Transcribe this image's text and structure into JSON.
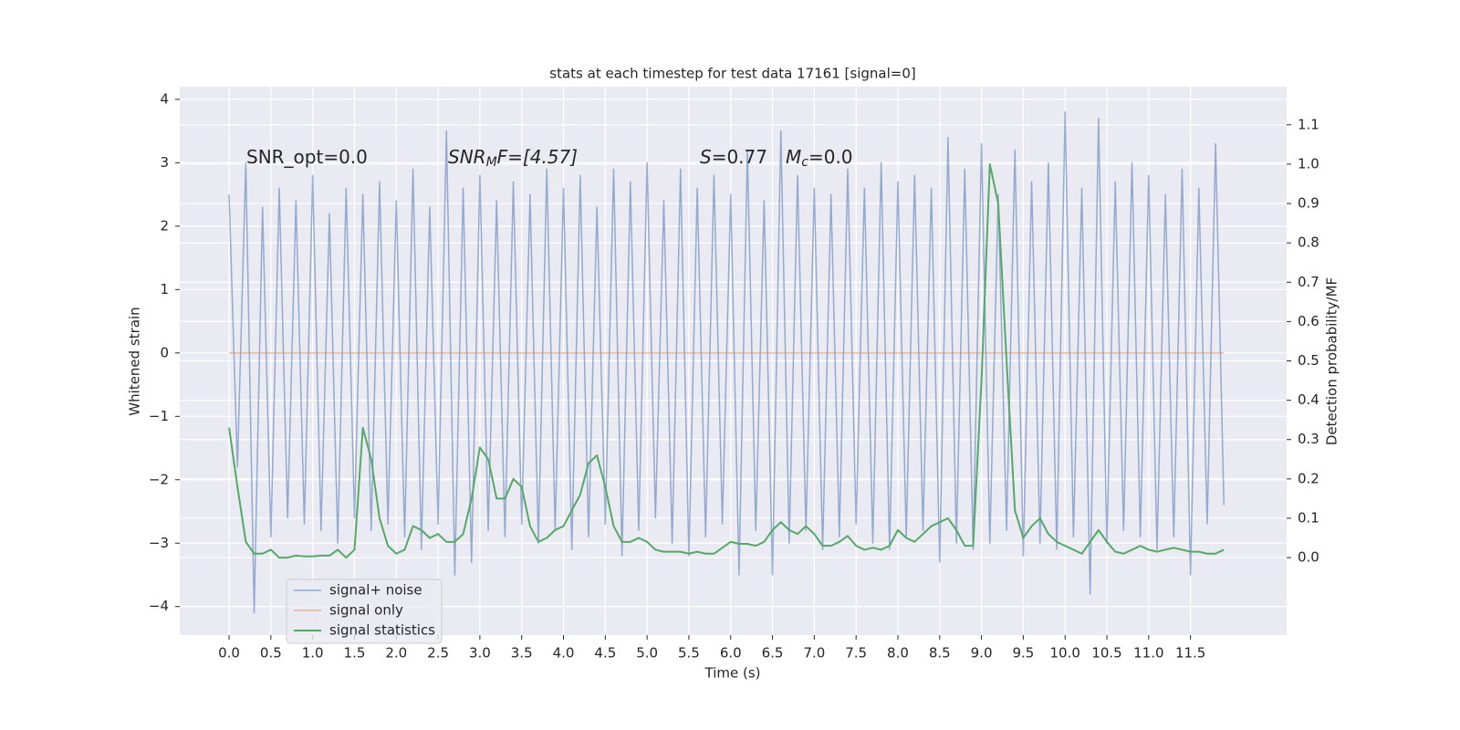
{
  "chart_data": {
    "type": "line",
    "title": "stats at each timestep for test data 17161 [signal=0]",
    "xlabel": "Time (s)",
    "ylabel": "Whitened strain",
    "y2label": "Detection probability/MF",
    "annotations": [
      {
        "parts": [
          "SNR_opt=0.0"
        ]
      },
      {
        "parts": [
          "SNR",
          "M",
          "F=[4.57]"
        ]
      },
      {
        "parts": [
          "S",
          "=0.77",
          "M",
          "c",
          "=0.0"
        ]
      }
    ],
    "x": [
      0,
      0.1,
      0.2,
      0.3,
      0.4,
      0.5,
      0.6,
      0.7,
      0.8,
      0.9,
      1,
      1.1,
      1.2,
      1.3,
      1.4,
      1.5,
      1.6,
      1.7,
      1.8,
      1.9,
      2,
      2.1,
      2.2,
      2.3,
      2.4,
      2.5,
      2.6,
      2.7,
      2.8,
      2.9,
      3,
      3.1,
      3.2,
      3.3,
      3.4,
      3.5,
      3.6,
      3.7,
      3.8,
      3.9,
      4,
      4.1,
      4.2,
      4.3,
      4.4,
      4.5,
      4.6,
      4.7,
      4.8,
      4.9,
      5,
      5.1,
      5.2,
      5.3,
      5.4,
      5.5,
      5.6,
      5.7,
      5.8,
      5.9,
      6,
      6.1,
      6.2,
      6.3,
      6.4,
      6.5,
      6.6,
      6.7,
      6.8,
      6.9,
      7,
      7.1,
      7.2,
      7.3,
      7.4,
      7.5,
      7.6,
      7.7,
      7.8,
      7.9,
      8,
      8.1,
      8.2,
      8.3,
      8.4,
      8.5,
      8.6,
      8.7,
      8.8,
      8.9,
      9,
      9.1,
      9.2,
      9.3,
      9.4,
      9.5,
      9.6,
      9.7,
      9.8,
      9.9,
      10,
      10.1,
      10.2,
      10.3,
      10.4,
      10.5,
      10.6,
      10.7,
      10.8,
      10.9,
      11,
      11.1,
      11.2,
      11.3,
      11.4,
      11.5,
      11.6,
      11.7,
      11.8,
      11.9
    ],
    "series": [
      {
        "name": "signal+ noise",
        "color": "#4c72b0",
        "axis": "y",
        "values": [
          2.5,
          -1.8,
          3.0,
          -4.1,
          2.3,
          -2.9,
          2.6,
          -2.6,
          2.4,
          -2.7,
          2.8,
          -2.8,
          2.2,
          -3.0,
          2.6,
          -2.6,
          2.5,
          -2.8,
          2.7,
          -2.7,
          2.4,
          -2.9,
          2.9,
          -3.1,
          2.3,
          -2.7,
          3.5,
          -3.5,
          2.6,
          -3.3,
          2.8,
          -2.8,
          2.4,
          -2.9,
          2.7,
          -2.7,
          2.5,
          -3.0,
          2.9,
          -2.8,
          2.6,
          -3.1,
          2.8,
          -2.9,
          2.3,
          -2.7,
          2.9,
          -3.2,
          2.7,
          -2.8,
          3.0,
          -2.6,
          2.4,
          -3.0,
          2.9,
          -3.2,
          2.6,
          -2.9,
          2.8,
          -2.7,
          2.5,
          -3.5,
          3.2,
          -2.8,
          2.4,
          -3.5,
          3.5,
          -3.0,
          2.8,
          -2.8,
          2.6,
          -3.1,
          2.5,
          -2.9,
          2.9,
          -2.7,
          2.6,
          -3.0,
          3.0,
          -3.1,
          2.7,
          -2.9,
          2.8,
          -2.8,
          2.6,
          -3.3,
          3.4,
          -3.0,
          2.9,
          -3.1,
          3.3,
          -3.0,
          2.5,
          -2.8,
          3.2,
          -3.2,
          2.7,
          -3.0,
          3.0,
          -3.1,
          3.8,
          -2.9,
          2.6,
          -3.8,
          3.7,
          -3.0,
          2.7,
          -2.8,
          3.0,
          -2.9,
          2.8,
          -3.1,
          2.5,
          -2.9,
          2.9,
          -3.5,
          2.6,
          -2.7,
          3.3,
          -2.4
        ]
      },
      {
        "name": "signal only",
        "color": "#dd8452",
        "axis": "y",
        "values": [
          0,
          0,
          0,
          0,
          0,
          0,
          0,
          0,
          0,
          0,
          0,
          0,
          0,
          0,
          0,
          0,
          0,
          0,
          0,
          0,
          0,
          0,
          0,
          0,
          0,
          0,
          0,
          0,
          0,
          0,
          0,
          0,
          0,
          0,
          0,
          0,
          0,
          0,
          0,
          0,
          0,
          0,
          0,
          0,
          0,
          0,
          0,
          0,
          0,
          0,
          0,
          0,
          0,
          0,
          0,
          0,
          0,
          0,
          0,
          0,
          0,
          0,
          0,
          0,
          0,
          0,
          0,
          0,
          0,
          0,
          0,
          0,
          0,
          0,
          0,
          0,
          0,
          0,
          0,
          0,
          0,
          0,
          0,
          0,
          0,
          0,
          0,
          0,
          0,
          0,
          0,
          0,
          0,
          0,
          0,
          0,
          0,
          0,
          0,
          0,
          0,
          0,
          0,
          0,
          0,
          0,
          0,
          0,
          0,
          0,
          0,
          0,
          0,
          0,
          0,
          0,
          0,
          0,
          0,
          0
        ]
      },
      {
        "name": "signal statistics",
        "color": "#55a868",
        "axis": "y2",
        "values": [
          0.33,
          0.18,
          0.04,
          0.01,
          0.01,
          0.02,
          0.0,
          0.0,
          0.005,
          0.003,
          0.003,
          0.005,
          0.005,
          0.02,
          0.0,
          0.02,
          0.33,
          0.25,
          0.1,
          0.03,
          0.01,
          0.02,
          0.08,
          0.07,
          0.05,
          0.06,
          0.04,
          0.04,
          0.06,
          0.15,
          0.28,
          0.25,
          0.15,
          0.15,
          0.2,
          0.18,
          0.08,
          0.04,
          0.05,
          0.07,
          0.08,
          0.12,
          0.16,
          0.24,
          0.26,
          0.18,
          0.08,
          0.04,
          0.04,
          0.05,
          0.04,
          0.02,
          0.015,
          0.015,
          0.015,
          0.01,
          0.015,
          0.01,
          0.01,
          0.025,
          0.04,
          0.035,
          0.035,
          0.03,
          0.04,
          0.07,
          0.09,
          0.07,
          0.06,
          0.08,
          0.06,
          0.03,
          0.03,
          0.04,
          0.055,
          0.03,
          0.02,
          0.025,
          0.02,
          0.03,
          0.07,
          0.05,
          0.04,
          0.06,
          0.08,
          0.09,
          0.1,
          0.07,
          0.03,
          0.03,
          0.45,
          1.0,
          0.9,
          0.5,
          0.12,
          0.05,
          0.08,
          0.1,
          0.06,
          0.04,
          0.03,
          0.02,
          0.01,
          0.04,
          0.07,
          0.04,
          0.015,
          0.01,
          0.02,
          0.03,
          0.02,
          0.015,
          0.02,
          0.025,
          0.02,
          0.015,
          0.015,
          0.01,
          0.01,
          0.02
        ]
      }
    ],
    "xlim": [
      -0.59,
      12.65
    ],
    "xticks": [
      {
        "value": 0,
        "label": "0.0"
      },
      0.5,
      {
        "value": 1,
        "label": "1.0"
      },
      1.5,
      {
        "value": 2,
        "label": "2.0"
      },
      2.5,
      {
        "value": 3,
        "label": "3.0"
      },
      3.5,
      {
        "value": 4,
        "label": "4.0"
      },
      4.5,
      {
        "value": 5,
        "label": "5.0"
      },
      5.5,
      {
        "value": 6,
        "label": "6.0"
      },
      6.5,
      {
        "value": 7,
        "label": "7.0"
      },
      7.5,
      {
        "value": 8,
        "label": "8.0"
      },
      8.5,
      {
        "value": 9,
        "label": "9.0"
      },
      9.5,
      {
        "value": 10,
        "label": "10.0"
      },
      10.5,
      {
        "value": 11,
        "label": "11.0"
      },
      11.5
    ],
    "ylim": [
      -4.45,
      4.2
    ],
    "yticks": [
      {
        "value": -4,
        "label": "−4"
      },
      {
        "value": -3,
        "label": "−3"
      },
      {
        "value": -2,
        "label": "−2"
      },
      {
        "value": -1,
        "label": "−1"
      },
      0,
      1,
      2,
      3,
      4
    ],
    "y2lim": [
      -0.197,
      1.197
    ],
    "y2ticks": [
      {
        "value": 0,
        "label": "0.0"
      },
      0.1,
      0.2,
      0.3,
      0.4,
      0.5,
      0.6,
      0.7,
      0.8,
      0.9,
      {
        "value": 1,
        "label": "1.0"
      },
      1.1
    ],
    "grid": true,
    "legend": "lower left"
  }
}
